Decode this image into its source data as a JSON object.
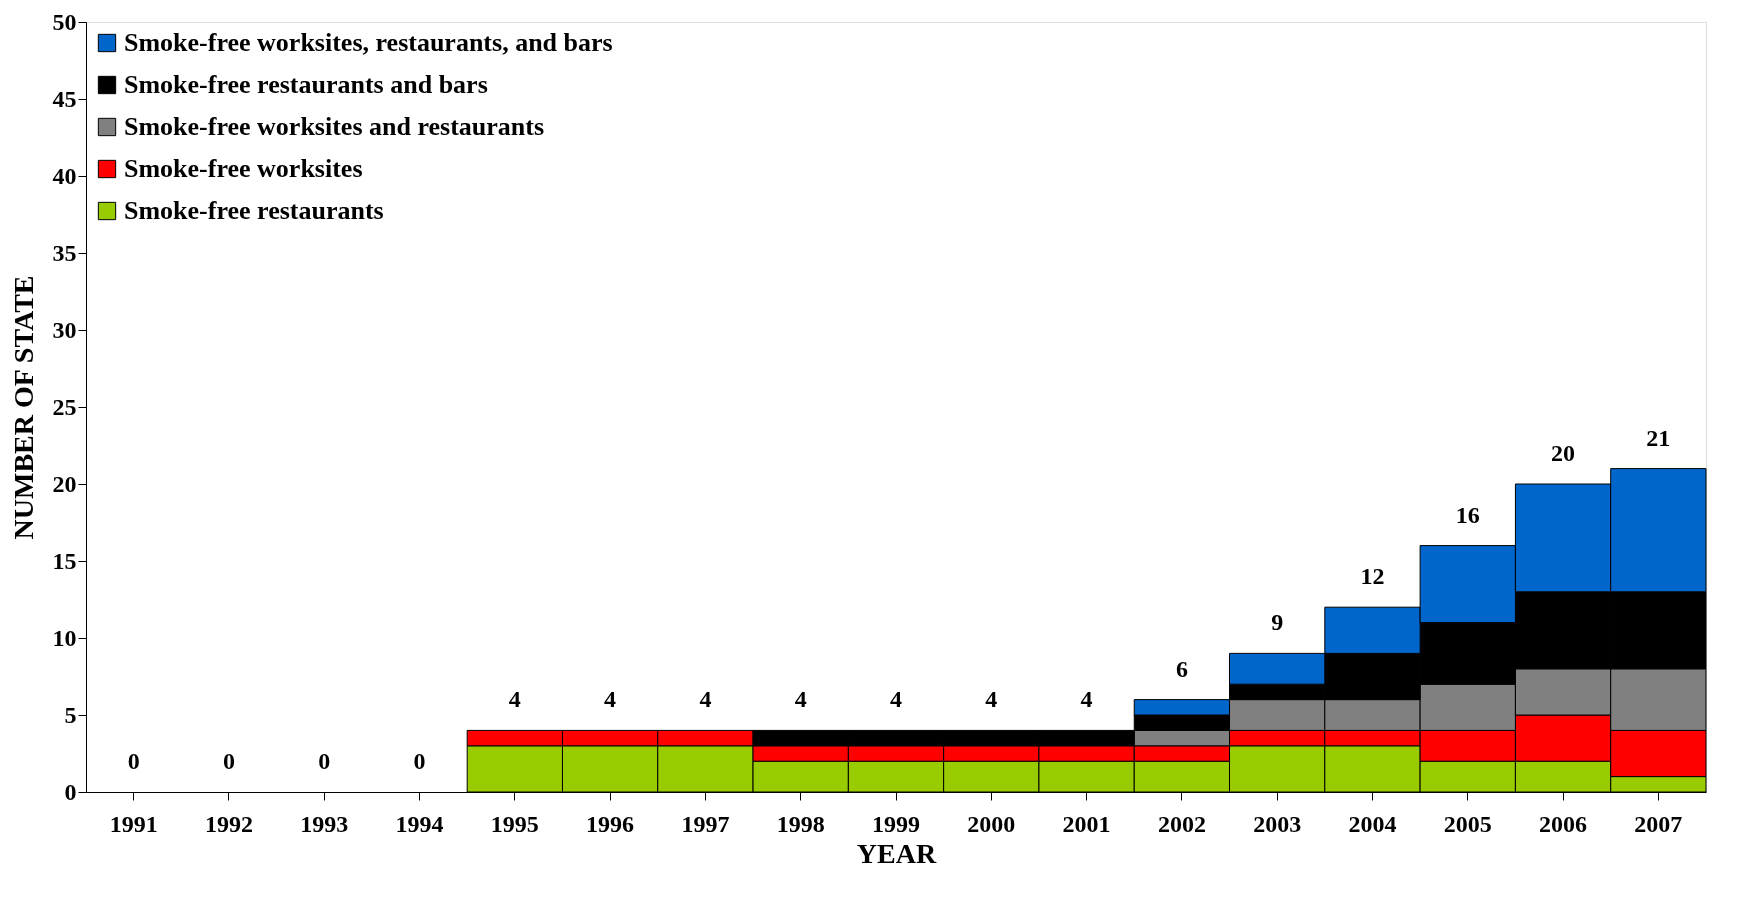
{
  "chart_data": {
    "type": "bar",
    "stacked": true,
    "xlabel": "YEAR",
    "ylabel": "NUMBER OF STATE",
    "categories": [
      "1991",
      "1992",
      "1993",
      "1994",
      "1995",
      "1996",
      "1997",
      "1998",
      "1999",
      "2000",
      "2001",
      "2002",
      "2003",
      "2004",
      "2005",
      "2006",
      "2007"
    ],
    "series": [
      {
        "name": "Smoke-free restaurants",
        "color": "#99cc00",
        "values": [
          0,
          0,
          0,
          0,
          3,
          3,
          3,
          2,
          2,
          2,
          2,
          2,
          3,
          3,
          2,
          2,
          1
        ]
      },
      {
        "name": "Smoke-free worksites",
        "color": "#ff0000",
        "values": [
          0,
          0,
          0,
          0,
          1,
          1,
          1,
          1,
          1,
          1,
          1,
          1,
          1,
          1,
          2,
          3,
          3
        ]
      },
      {
        "name": "Smoke-free worksites and restaurants",
        "color": "#808080",
        "values": [
          0,
          0,
          0,
          0,
          0,
          0,
          0,
          0,
          0,
          0,
          0,
          1,
          2,
          2,
          3,
          3,
          4
        ]
      },
      {
        "name": "Smoke-free restaurants and bars",
        "color": "#000000",
        "values": [
          0,
          0,
          0,
          0,
          0,
          0,
          0,
          1,
          1,
          1,
          1,
          1,
          1,
          3,
          4,
          5,
          5
        ]
      },
      {
        "name": "Smoke-free worksites, restaurants, and bars",
        "color": "#0066cc",
        "values": [
          0,
          0,
          0,
          0,
          0,
          0,
          0,
          0,
          0,
          0,
          0,
          1,
          2,
          3,
          5,
          7,
          8
        ]
      }
    ],
    "totals": [
      "0",
      "0",
      "0",
      "0",
      "4",
      "4",
      "4",
      "4",
      "4",
      "4",
      "4",
      "6",
      "9",
      "12",
      "16",
      "20",
      "21"
    ],
    "ylim": [
      0,
      50
    ],
    "yticks": [
      0,
      5,
      10,
      15,
      20,
      25,
      30,
      35,
      40,
      45,
      50
    ],
    "grid": false,
    "legend": "top left"
  }
}
